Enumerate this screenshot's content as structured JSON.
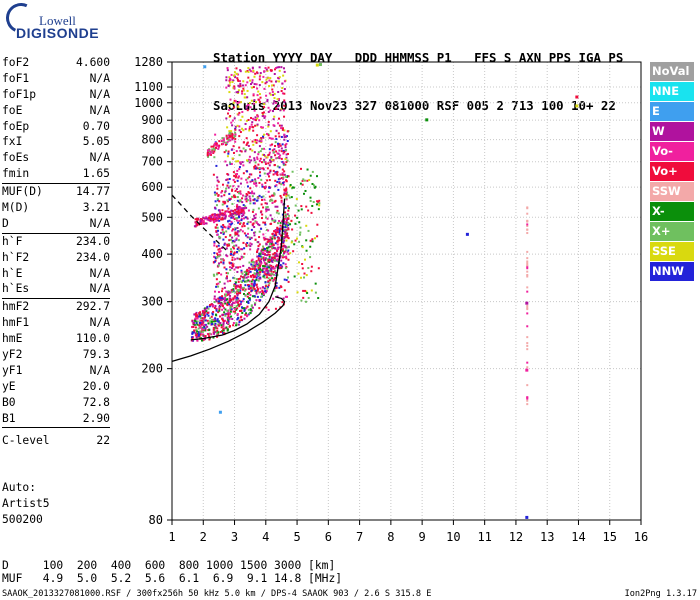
{
  "logo": {
    "line1": "Lowell",
    "line2": "DIGISONDE"
  },
  "header": {
    "line1": "Station YYYY DAY   DDD HHMMSS P1   FFS S AXN PPS IGA PS",
    "line2": "SaoLuis 2013 Nov23 327 081000 RSF 005 2 713 100 10+ 22"
  },
  "params": [
    {
      "name": "foF2",
      "value": "4.600"
    },
    {
      "name": "foF1",
      "value": "N/A"
    },
    {
      "name": "foF1p",
      "value": "N/A"
    },
    {
      "name": "foE",
      "value": "N/A"
    },
    {
      "name": "foEp",
      "value": "0.70"
    },
    {
      "name": "fxI",
      "value": "5.05"
    },
    {
      "name": "foEs",
      "value": "N/A"
    },
    {
      "name": "fmin",
      "value": "1.65"
    },
    {
      "name": "MUF(D)",
      "value": "14.77"
    },
    {
      "name": "M(D)",
      "value": "3.21"
    },
    {
      "name": "D",
      "value": "N/A"
    },
    {
      "name": "h`F",
      "value": "234.0"
    },
    {
      "name": "h`F2",
      "value": "234.0"
    },
    {
      "name": "h`E",
      "value": "N/A"
    },
    {
      "name": "h`Es",
      "value": "N/A"
    },
    {
      "name": "hmF2",
      "value": "292.7"
    },
    {
      "name": "hmF1",
      "value": "N/A"
    },
    {
      "name": "hmE",
      "value": "110.0"
    },
    {
      "name": "yF2",
      "value": "79.3"
    },
    {
      "name": "yF1",
      "value": "N/A"
    },
    {
      "name": "yE",
      "value": "20.0"
    },
    {
      "name": "B0",
      "value": "72.8"
    },
    {
      "name": "B1",
      "value": "2.90"
    },
    {
      "name": "C-level",
      "value": "22"
    }
  ],
  "auto": {
    "line1": "Auto:",
    "line2": "Artist5",
    "line3": "500200"
  },
  "legend": [
    {
      "label": "NoVal",
      "color": "#a0a0a0"
    },
    {
      "label": "NNE",
      "color": "#19e3ef"
    },
    {
      "label": "E",
      "color": "#3f9fef"
    },
    {
      "label": "W",
      "color": "#b0129e"
    },
    {
      "label": "Vo-",
      "color": "#f0209e"
    },
    {
      "label": "Vo+",
      "color": "#f00c3c"
    },
    {
      "label": "SSW",
      "color": "#f3a9a9"
    },
    {
      "label": "X-",
      "color": "#0b8f0b"
    },
    {
      "label": "X+",
      "color": "#6fc05f"
    },
    {
      "label": "SSE",
      "color": "#d9d90f"
    },
    {
      "label": "NNW",
      "color": "#2323d9"
    }
  ],
  "muf_table": {
    "d_row": "D     100  200  400  600  800 1000 1500 3000 [km]",
    "muf_row": "MUF   4.9  5.0  5.2  5.6  6.1  6.9  9.1 14.8 [MHz]"
  },
  "footer": {
    "text": "SAAOK_2013327081000.RSF / 300fx256h 50 kHz 5.0 km / DPS-4 SAAOK 903 / 2.6 S 315.8 E",
    "version": "Ion2Png 1.3.17"
  },
  "chart_data": {
    "type": "scatter",
    "title": "",
    "xlabel": "",
    "ylabel": "",
    "xlim": [
      1,
      16
    ],
    "ylim": [
      80,
      1280
    ],
    "y_scale": "log",
    "x_ticks": [
      1,
      2,
      3,
      4,
      5,
      6,
      7,
      8,
      9,
      10,
      11,
      12,
      13,
      14,
      15,
      16
    ],
    "y_ticks": [
      80,
      200,
      300,
      400,
      500,
      600,
      700,
      800,
      900,
      1000,
      1100,
      1280
    ],
    "grid": true,
    "series": [
      {
        "name": "",
        "kind": "profile-curve",
        "style": "solid",
        "color": "#000000",
        "points": [
          [
            1.0,
            209
          ],
          [
            1.6,
            216
          ],
          [
            2.2,
            225
          ],
          [
            2.8,
            236
          ],
          [
            3.4,
            250
          ],
          [
            3.9,
            265
          ],
          [
            4.3,
            280
          ],
          [
            4.55,
            293
          ],
          [
            4.6,
            300
          ],
          [
            4.5,
            306
          ],
          [
            4.3,
            309
          ]
        ]
      },
      {
        "name": "",
        "kind": "extrapolation",
        "style": "dashed",
        "color": "#000000",
        "points": [
          [
            1.0,
            572
          ],
          [
            1.6,
            505
          ],
          [
            2.2,
            452
          ],
          [
            2.6,
            420
          ],
          [
            2.8,
            405
          ]
        ]
      },
      {
        "name": "",
        "kind": "trace-lower",
        "style": "solid",
        "color": "#000000",
        "points": [
          [
            1.6,
            238
          ],
          [
            2.0,
            240
          ],
          [
            2.6,
            245
          ],
          [
            3.0,
            252
          ],
          [
            3.4,
            262
          ],
          [
            3.8,
            278
          ],
          [
            4.1,
            300
          ],
          [
            4.3,
            330
          ],
          [
            4.5,
            420
          ],
          [
            4.6,
            560
          ]
        ]
      }
    ],
    "echo_regions": [
      {
        "name": "F-trace",
        "color": "#f00c3c",
        "f": [
          1.6,
          4.7
        ],
        "h": [
          230,
          860
        ]
      },
      {
        "name": "F-trace-2hop",
        "color": "#f0209e",
        "f": [
          1.6,
          3.4
        ],
        "h": [
          460,
          560
        ]
      },
      {
        "name": "spread-upper",
        "color": "#b0129e",
        "f": [
          2.2,
          4.7
        ],
        "h": [
          600,
          1250
        ]
      },
      {
        "name": "X-trace",
        "color": "#6fc05f",
        "f": [
          2.0,
          5.6
        ],
        "h": [
          240,
          700
        ]
      },
      {
        "name": "NNW-echoes",
        "color": "#2323d9",
        "f": [
          1.8,
          4.6
        ],
        "h": [
          240,
          600
        ]
      },
      {
        "name": "SSW-echoes",
        "color": "#f3a9a9",
        "f": [
          12.3,
          12.4
        ],
        "h": [
          150,
          540
        ]
      }
    ],
    "isolated_points": [
      {
        "f": 2.0,
        "h": 1255,
        "color": "#3f9fef"
      },
      {
        "f": 5.6,
        "h": 1268,
        "color": "#d9d90f"
      },
      {
        "f": 5.7,
        "h": 1272,
        "color": "#6fc05f"
      },
      {
        "f": 9.1,
        "h": 910,
        "color": "#0b8f0b"
      },
      {
        "f": 10.4,
        "h": 455,
        "color": "#2323d9"
      },
      {
        "f": 13.9,
        "h": 1045,
        "color": "#f00c3c"
      },
      {
        "f": 13.9,
        "h": 990,
        "color": "#d9d90f"
      },
      {
        "f": 12.3,
        "h": 300,
        "color": "#b0129e"
      },
      {
        "f": 12.3,
        "h": 200,
        "color": "#f0209e"
      },
      {
        "f": 12.3,
        "h": 82,
        "color": "#2323d9"
      },
      {
        "f": 2.5,
        "h": 155,
        "color": "#3f9fef"
      }
    ]
  }
}
